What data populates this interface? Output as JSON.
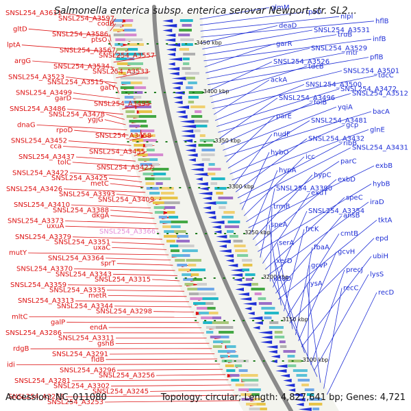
{
  "title": "Salmonella enterica subsp. enterica serovar Newport str. SL2...",
  "footer": {
    "accession": "Accession: NC_011080",
    "topology": "Topology: circular; Length: 4,827,641 bp; Genes: 4,721"
  },
  "colors": {
    "forward_gene": "#dd1111",
    "reverse_gene": "#1f2fd6",
    "highlight_gene": "#e38fd8",
    "backbone": "#8a8a8a",
    "kbp_dots": "#1b7a1b"
  },
  "kbp_ticks": [
    "3450 kbp",
    "3400 kbp",
    "3350 kbp",
    "3300 kbp",
    "3250 kbp",
    "3200 kbp",
    "3150 kbp",
    "3100 kbp"
  ],
  "left_labels": [
    {
      "text": "SNSL254_A3611",
      "highlight": false
    },
    {
      "text": "SNSL254_A3597",
      "highlight": false
    },
    {
      "text": "codB",
      "highlight": false
    },
    {
      "text": "gltD",
      "highlight": false
    },
    {
      "text": "SNSL254_A3586",
      "highlight": false
    },
    {
      "text": "ptsO",
      "highlight": false
    },
    {
      "text": "lptA",
      "highlight": false
    },
    {
      "text": "SNSL254_A3567",
      "highlight": false
    },
    {
      "text": "SNSL254_A3557",
      "highlight": false
    },
    {
      "text": "argG",
      "highlight": false
    },
    {
      "text": "SNSL254_A3534",
      "highlight": false
    },
    {
      "text": "SNSL254_A3533",
      "highlight": false
    },
    {
      "text": "SNSL254_A3523",
      "highlight": false
    },
    {
      "text": "SNSL254_A3515",
      "highlight": false
    },
    {
      "text": "gatY",
      "highlight": false
    },
    {
      "text": "SNSL254_A3499",
      "highlight": false
    },
    {
      "text": "garD",
      "highlight": false
    },
    {
      "text": "SNSL254_A3495",
      "highlight": false
    },
    {
      "text": "SNSL254_A3486",
      "highlight": false
    },
    {
      "text": "SNSL254_A3478",
      "highlight": false
    },
    {
      "text": "ygjG",
      "highlight": false
    },
    {
      "text": "dnaG",
      "highlight": false
    },
    {
      "text": "rpoD",
      "highlight": false
    },
    {
      "text": "SNSL254_A3458",
      "highlight": false
    },
    {
      "text": "SNSL254_A3452",
      "highlight": false
    },
    {
      "text": "cca",
      "highlight": false
    },
    {
      "text": "SNSL254_A3455",
      "highlight": false
    },
    {
      "text": "SNSL254_A3437",
      "highlight": false
    },
    {
      "text": "tolC",
      "highlight": false
    },
    {
      "text": "SNSL254_A3427",
      "highlight": false
    },
    {
      "text": "SNSL254_A3422",
      "highlight": false
    },
    {
      "text": "SNSL254_A3425",
      "highlight": false
    },
    {
      "text": "metC",
      "highlight": false
    },
    {
      "text": "SNSL254_A3426",
      "highlight": false
    },
    {
      "text": "SNSL254_A3393",
      "highlight": false
    },
    {
      "text": "SNSL254_A3409",
      "highlight": false
    },
    {
      "text": "SNSL254_A3410",
      "highlight": false
    },
    {
      "text": "SNSL254_A3388",
      "highlight": false
    },
    {
      "text": "dkgA",
      "highlight": false
    },
    {
      "text": "SNSL254_A3373",
      "highlight": false
    },
    {
      "text": "uxuA",
      "highlight": false
    },
    {
      "text": "SNSL254_A3366",
      "highlight": true
    },
    {
      "text": "SNSL254_A3379",
      "highlight": false
    },
    {
      "text": "SNSL254_A3351",
      "highlight": false
    },
    {
      "text": "uxaC",
      "highlight": false
    },
    {
      "text": "mutY",
      "highlight": false
    },
    {
      "text": "SNSL254_A3364",
      "highlight": false
    },
    {
      "text": "sprT",
      "highlight": false
    },
    {
      "text": "SNSL254_A3370",
      "highlight": false
    },
    {
      "text": "SNSL254_A3343",
      "highlight": false
    },
    {
      "text": "SNSL254_A3315",
      "highlight": false
    },
    {
      "text": "SNSL254_A3359",
      "highlight": false
    },
    {
      "text": "SNSL254_A3335",
      "highlight": false
    },
    {
      "text": "metR",
      "highlight": false
    },
    {
      "text": "SNSL254_A3313",
      "highlight": false
    },
    {
      "text": "SNSL254_A3344",
      "highlight": false
    },
    {
      "text": "SNSL254_A3298",
      "highlight": false
    },
    {
      "text": "mltC",
      "highlight": false
    },
    {
      "text": "galP",
      "highlight": false
    },
    {
      "text": "endA",
      "highlight": false
    },
    {
      "text": "SNSL254_A3286",
      "highlight": false
    },
    {
      "text": "SNSL254_A3311",
      "highlight": false
    },
    {
      "text": "gshB",
      "highlight": false
    },
    {
      "text": "rdgB",
      "highlight": false
    },
    {
      "text": "SNSL254_A3291",
      "highlight": false
    },
    {
      "text": "fldB",
      "highlight": false
    },
    {
      "text": "idi",
      "highlight": false
    },
    {
      "text": "SNSL254_A3296",
      "highlight": false
    },
    {
      "text": "SNSL254_A3256",
      "highlight": false
    },
    {
      "text": "SNSL254_A3281",
      "highlight": false
    },
    {
      "text": "SNSL254_A3302",
      "highlight": false
    },
    {
      "text": "SNSL254_A3245",
      "highlight": false
    },
    {
      "text": "SNSL254_A3268",
      "highlight": false
    },
    {
      "text": "SNSL254_A3253",
      "highlight": false
    }
  ],
  "right_labels": [
    "glmM",
    "rpsO",
    "nlpI",
    "hflB",
    "deaD",
    "SNSL254_A3531",
    "truB",
    "infB",
    "garR",
    "SNSL254_A3529",
    "mtr",
    "pflB",
    "SNSL254_A3526",
    "tdcB",
    "SNSL254_A3501",
    "tdcC",
    "ackA",
    "SNSL254_A3500",
    "SNSL254_A3472",
    "SNSL254_A3512",
    "SNSL254_A3496",
    "folB",
    "yqiA",
    "bacA",
    "parE",
    "SNSL254_A3481",
    "gcp",
    "glnE",
    "nudF",
    "SNSL254_A3432",
    "ribB",
    "SNSL254_A3431",
    "hybO",
    "icc",
    "parC",
    "exbB",
    "hypA",
    "hypC",
    "exbD",
    "hybB",
    "SNSL254_A3390",
    "exuT",
    "speC",
    "iraD",
    "trmB",
    "SNSL254_A3354",
    "ansB",
    "tktA",
    "speA",
    "frcK",
    "cmtB",
    "epd",
    "serA",
    "fbaA",
    "gcvH",
    "ubiH",
    "xerD",
    "gcvP",
    "precJ",
    "lysS",
    "kduD",
    "lysA",
    "recC",
    "recD"
  ]
}
